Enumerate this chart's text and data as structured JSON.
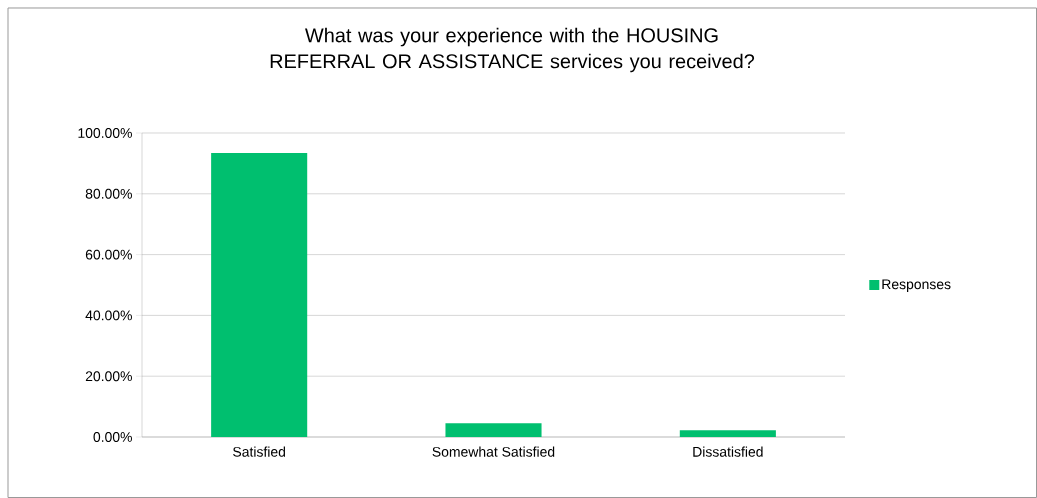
{
  "chart_data": {
    "type": "bar",
    "title": "What was your experience with the HOUSING REFERRAL OR ASSISTANCE services you received?",
    "categories": [
      "Satisfied",
      "Somewhat Satisfied",
      "Dissatisfied"
    ],
    "series": [
      {
        "name": "Responses",
        "color": "#00bf6f",
        "values": [
          93.4,
          4.5,
          2.2
        ]
      }
    ],
    "ylim": [
      0,
      100
    ],
    "yticks": [
      {
        "value": 0,
        "label": "0.00%"
      },
      {
        "value": 20,
        "label": "20.00%"
      },
      {
        "value": 40,
        "label": "40.00%"
      },
      {
        "value": 60,
        "label": "60.00%"
      },
      {
        "value": 80,
        "label": "80.00%"
      },
      {
        "value": 100,
        "label": "100.00%"
      }
    ],
    "grid": "y",
    "legend": "right"
  }
}
